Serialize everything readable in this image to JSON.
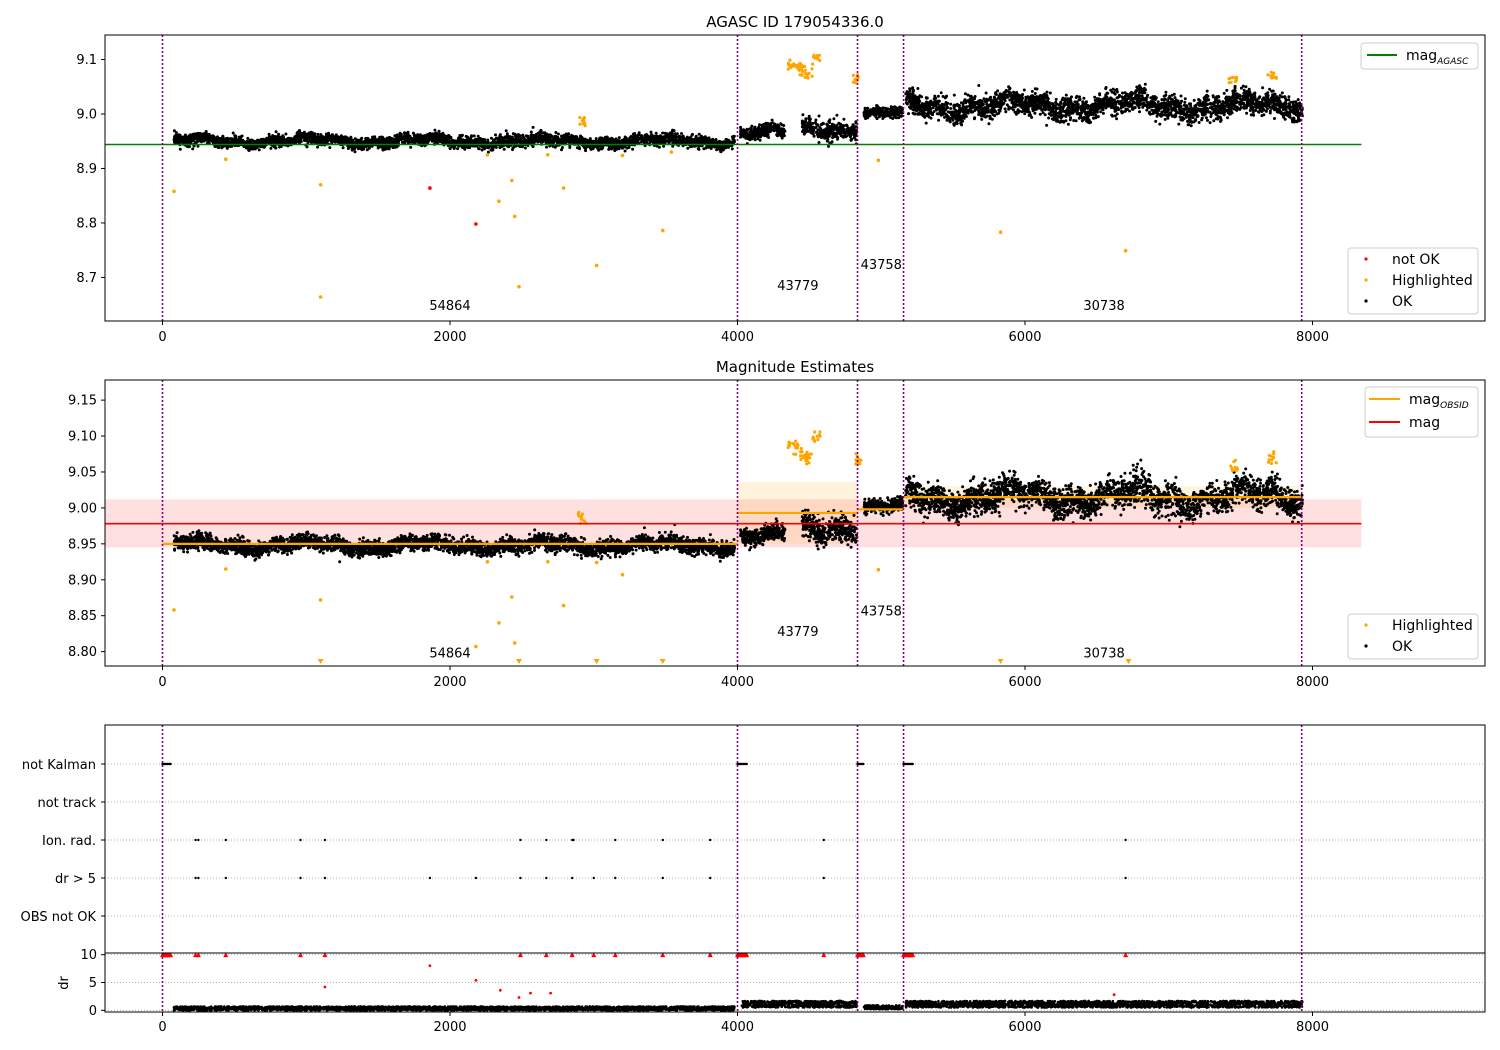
{
  "chart_data": [
    {
      "type": "scatter",
      "title": "AGASC ID 179054336.0",
      "xlim": [
        -400,
        9200
      ],
      "ylim": [
        8.62,
        9.145
      ],
      "xticks": [
        0,
        2000,
        4000,
        6000,
        8000
      ],
      "yticks": [
        8.7,
        8.8,
        8.9,
        9.0,
        9.1
      ],
      "ytick_labels": [
        "8.7",
        "8.8",
        "8.9",
        "9.0",
        "9.1"
      ],
      "legend_top": {
        "placement": "top-right",
        "entries": [
          {
            "label_main": "mag",
            "label_sub": "AGASC",
            "color": "#008000"
          }
        ]
      },
      "legend_bottom": {
        "placement": "bottom-right",
        "entries": [
          {
            "label": "not OK",
            "color": "#ff0000"
          },
          {
            "label": "Highlighted",
            "color": "#ffa500"
          },
          {
            "label": "OK",
            "color": "#000000"
          }
        ]
      },
      "hline": {
        "y": 8.944,
        "x": [
          -400,
          8340
        ],
        "color": "#008000"
      },
      "obs_boundaries": [
        0,
        4000,
        4835,
        5155,
        7925
      ],
      "obs_labels": [
        {
          "text": "54864",
          "x": 2000,
          "y": 8.64
        },
        {
          "text": "43779",
          "x": 4420,
          "y": 8.677
        },
        {
          "text": "43758",
          "x": 5000,
          "y": 8.715
        },
        {
          "text": "30738",
          "x": 6550,
          "y": 8.64
        }
      ],
      "segments": [
        {
          "x": [
            80,
            3980
          ],
          "mean": 8.95,
          "std": 0.007
        },
        {
          "x": [
            4020,
            4330
          ],
          "mean": 8.965,
          "std": 0.008
        },
        {
          "x": [
            4450,
            4830
          ],
          "mean": 8.975,
          "std": 0.012
        },
        {
          "x": [
            4880,
            5150
          ],
          "mean": 9.0,
          "std": 0.006
        },
        {
          "x": [
            5170,
            7930
          ],
          "mean": 9.015,
          "std": 0.014
        }
      ],
      "highlighted_points": [
        [
          80,
          8.858
        ],
        [
          1100,
          8.87
        ],
        [
          1100,
          8.664
        ],
        [
          2340,
          8.84
        ],
        [
          2430,
          8.878
        ],
        [
          2450,
          8.812
        ],
        [
          2480,
          8.683
        ],
        [
          2790,
          8.864
        ],
        [
          3020,
          8.722
        ],
        [
          3480,
          8.786
        ],
        [
          4980,
          8.915
        ],
        [
          5830,
          8.783
        ],
        [
          6700,
          8.749
        ],
        [
          440,
          8.917
        ],
        [
          2260,
          8.925
        ],
        [
          2680,
          8.925
        ],
        [
          3200,
          8.924
        ],
        [
          3540,
          8.93
        ]
      ],
      "highlighted_cluster": [
        [
          2920,
          8.985
        ],
        [
          4380,
          9.09
        ],
        [
          4420,
          9.085
        ],
        [
          4460,
          9.08
        ],
        [
          4500,
          9.075
        ],
        [
          4550,
          9.1
        ],
        [
          4830,
          9.065
        ],
        [
          7450,
          9.06
        ],
        [
          7720,
          9.07
        ]
      ],
      "not_ok_points": [
        [
          1860,
          8.864
        ],
        [
          2180,
          8.798
        ]
      ]
    },
    {
      "type": "scatter",
      "title": "Magnitude Estimates",
      "xlim": [
        -400,
        9200
      ],
      "ylim": [
        8.78,
        9.178
      ],
      "xticks": [
        0,
        2000,
        4000,
        6000,
        8000
      ],
      "yticks": [
        8.8,
        8.85,
        8.9,
        8.95,
        9.0,
        9.05,
        9.1,
        9.15
      ],
      "ytick_labels": [
        "8.80",
        "8.85",
        "8.90",
        "8.95",
        "9.00",
        "9.05",
        "9.10",
        "9.15"
      ],
      "legend_top": {
        "placement": "top-right",
        "entries": [
          {
            "label_main": "mag",
            "label_sub": "OBSID",
            "color": "#ffa500"
          },
          {
            "label_main": "mag",
            "label_sub": "",
            "color": "#ff0000"
          }
        ]
      },
      "legend_bottom": {
        "placement": "bottom-right",
        "entries": [
          {
            "label": "Highlighted",
            "color": "#ffa500"
          },
          {
            "label": "OK",
            "color": "#000000"
          }
        ]
      },
      "mag_line": {
        "y": 8.978,
        "band": [
          8.945,
          9.012
        ],
        "x": [
          -400,
          8340
        ],
        "color": "#ff0000"
      },
      "obsid_mags": [
        {
          "x": [
            0,
            4000
          ],
          "y": 8.95
        },
        {
          "x": [
            4000,
            4835
          ],
          "y": 8.993,
          "band": [
            8.95,
            9.036
          ]
        },
        {
          "x": [
            4835,
            5155
          ],
          "y": 8.998
        },
        {
          "x": [
            5155,
            7925
          ],
          "y": 9.015,
          "band": [
            9.0,
            9.03
          ]
        }
      ],
      "obs_boundaries": [
        0,
        4000,
        4835,
        5155,
        7925
      ],
      "obs_labels": [
        {
          "text": "54864",
          "x": 2000,
          "y": 8.792
        },
        {
          "text": "43779",
          "x": 4420,
          "y": 8.822
        },
        {
          "text": "43758",
          "x": 5000,
          "y": 8.85
        },
        {
          "text": "30738",
          "x": 6550,
          "y": 8.792
        }
      ],
      "segments": [
        {
          "x": [
            80,
            3980
          ],
          "mean": 8.948,
          "std": 0.007
        },
        {
          "x": [
            4020,
            4330
          ],
          "mean": 8.96,
          "std": 0.008
        },
        {
          "x": [
            4450,
            4830
          ],
          "mean": 8.975,
          "std": 0.012
        },
        {
          "x": [
            4880,
            5150
          ],
          "mean": 9.0,
          "std": 0.006
        },
        {
          "x": [
            5170,
            7930
          ],
          "mean": 9.015,
          "std": 0.014
        }
      ],
      "highlighted_points": [
        [
          80,
          8.858
        ],
        [
          1100,
          8.872
        ],
        [
          2180,
          8.807
        ],
        [
          2340,
          8.84
        ],
        [
          2430,
          8.876
        ],
        [
          2450,
          8.812
        ],
        [
          2790,
          8.864
        ],
        [
          3020,
          8.924
        ],
        [
          3200,
          8.907
        ],
        [
          4980,
          8.914
        ],
        [
          440,
          8.915
        ],
        [
          2260,
          8.925
        ],
        [
          2680,
          8.925
        ]
      ],
      "highlighted_cluster": [
        [
          2920,
          8.985
        ],
        [
          4380,
          9.09
        ],
        [
          4420,
          9.08
        ],
        [
          4460,
          9.075
        ],
        [
          4500,
          9.07
        ],
        [
          4550,
          9.1
        ],
        [
          4830,
          9.07
        ],
        [
          7450,
          9.06
        ],
        [
          7720,
          9.07
        ]
      ],
      "clipped_points": [
        1100,
        2480,
        3020,
        3480,
        5830,
        6720
      ]
    },
    {
      "type": "scatter",
      "title": "",
      "xlim": [
        -400,
        9200
      ],
      "xticks": [
        0,
        2000,
        4000,
        6000,
        8000
      ],
      "categories": [
        "not Kalman",
        "not track",
        "Ion. rad.",
        "dr > 5",
        "OBS not OK"
      ],
      "obs_boundaries": [
        0,
        4000,
        4835,
        5155,
        7925
      ],
      "flags": {
        "not Kalman": [
          [
            0,
            60
          ],
          [
            4000,
            4070
          ],
          [
            4835,
            4880
          ],
          [
            5155,
            5220
          ]
        ],
        "Ion. rad.": [
          230,
          250,
          440,
          960,
          1130,
          2490,
          2670,
          2850,
          2860,
          3150,
          3480,
          3810,
          4600,
          6700
        ],
        "dr > 5": [
          230,
          250,
          440,
          960,
          1130,
          1860,
          2180,
          2490,
          2670,
          2850,
          3000,
          3150,
          3480,
          3810,
          4600,
          6700
        ]
      }
    },
    {
      "type": "scatter",
      "title": "",
      "ylabel": "dr",
      "xlim": [
        -400,
        9200
      ],
      "ylim": [
        -0.3,
        10.3
      ],
      "yticks": [
        0,
        5,
        10
      ],
      "ytick_labels": [
        "0",
        "5",
        "10"
      ],
      "xticks": [
        0,
        2000,
        4000,
        6000,
        8000
      ],
      "xtick_labels": [
        "0",
        "2000",
        "4000",
        "6000",
        "8000"
      ],
      "obs_boundaries": [
        0,
        4000,
        4835,
        5155,
        7925
      ],
      "clipped_dr_at_10": [
        [
          0,
          60
        ],
        230,
        250,
        440,
        960,
        1130,
        2490,
        2670,
        2850,
        3000,
        3150,
        3480,
        3810,
        [
          4000,
          4070
        ],
        4600,
        [
          4835,
          4880
        ],
        [
          5155,
          5220
        ],
        6700
      ],
      "large_dr_points": [
        [
          1130,
          4.2
        ],
        [
          1860,
          8.0
        ],
        [
          2180,
          5.4
        ],
        [
          2350,
          3.6
        ],
        [
          2480,
          2.3
        ],
        [
          2560,
          3.1
        ],
        [
          2700,
          3.1
        ],
        [
          6620,
          2.8
        ]
      ],
      "baseline_segments": [
        {
          "x": [
            80,
            3980
          ],
          "mean": 0.35,
          "spread": 0.35
        },
        {
          "x": [
            4030,
            4830
          ],
          "mean": 1.1,
          "spread": 0.6
        },
        {
          "x": [
            4880,
            5150
          ],
          "mean": 0.55,
          "spread": 0.35
        },
        {
          "x": [
            5170,
            7930
          ],
          "mean": 1.1,
          "spread": 0.6
        }
      ]
    }
  ]
}
